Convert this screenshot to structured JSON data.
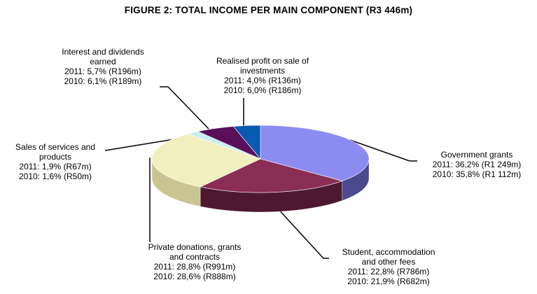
{
  "chart_data": {
    "type": "pie",
    "title": "FIGURE 2: TOTAL INCOME PER MAIN  COMPONENT  (R3 446m)",
    "series": [
      {
        "name": "2011",
        "values": [
          36.2,
          22.8,
          28.8,
          1.9,
          5.7,
          4.0
        ]
      },
      {
        "name": "2010",
        "values": [
          35.8,
          21.9,
          28.6,
          1.6,
          6.1,
          6.0
        ]
      }
    ],
    "categories": [
      "Government grants",
      "Student, accommodation and other fees",
      "Private donations, grants and contracts",
      "Sales of services and products",
      "Interest and dividends earned",
      "Realised profit on sale of investments"
    ],
    "slices": [
      {
        "key": "government",
        "name_lines": [
          "Government grants"
        ],
        "line2011": "2011: 36,2% (R1 249m)",
        "line2010": "2010: 35,8% (R1 112m)",
        "value": 36.2,
        "color": "#8c8cf0",
        "side_color": "#4a4a90"
      },
      {
        "key": "student",
        "name_lines": [
          "Student, accommodation",
          "and other fees"
        ],
        "line2011": "2011: 22,8% (R786m)",
        "line2010": "2010: 21,9% (R682m)",
        "value": 22.8,
        "color": "#8a2e55",
        "side_color": "#4e1830"
      },
      {
        "key": "private",
        "name_lines": [
          "Private donations, grants",
          "and contracts"
        ],
        "line2011": "2011: 28,8% (R991m)",
        "line2010": "2010: 28,6% (R888m)",
        "value": 28.8,
        "color": "#f2efbf",
        "side_color": "#c9c592"
      },
      {
        "key": "sales",
        "name_lines": [
          "Sales of services and",
          "products"
        ],
        "line2011": "2011: 1,9% (R67m)",
        "line2010": "2010: 1,6% (R50m)",
        "value": 1.9,
        "color": "#c6eef2",
        "side_color": "#8fbcc0"
      },
      {
        "key": "interest",
        "name_lines": [
          "Interest and dividends",
          "earned"
        ],
        "line2011": "2011: 5,7% (R196m)",
        "line2010": "2010: 6,1% (R189m)",
        "value": 5.7,
        "color": "#5a0f5a",
        "side_color": "#320632"
      },
      {
        "key": "profit",
        "name_lines": [
          "Realised profit on sale of",
          "investments"
        ],
        "line2011": "2011: 4,0% (R136m)",
        "line2010": "2010: 6,0% (R186m)",
        "value": 4.0,
        "color": "#0a5ab4",
        "side_color": "#05306a"
      }
    ]
  }
}
